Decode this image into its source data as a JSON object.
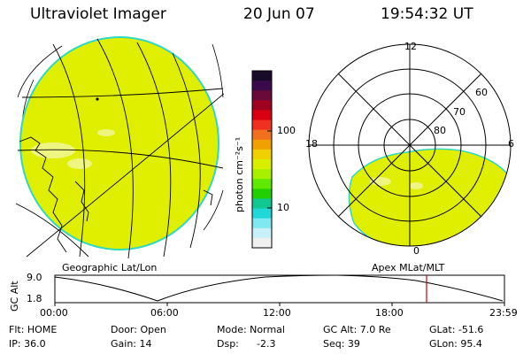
{
  "header": {
    "title": "Ultraviolet Imager",
    "date": "20 Jun 07",
    "time": "19:54:32 UT"
  },
  "colorbar": {
    "unit_label": "photon cm⁻²s⁻¹",
    "tick_labels": [
      "100",
      "10"
    ],
    "colors": [
      "#1a0a2a",
      "#3a0a4a",
      "#6a0a3a",
      "#a00020",
      "#d80010",
      "#f03020",
      "#f07020",
      "#f0a000",
      "#f0d000",
      "#d8f000",
      "#a8f000",
      "#60e800",
      "#20d000",
      "#10c890",
      "#20d8d8",
      "#80e8f0",
      "#c8f0f8",
      "#f0f0f0"
    ]
  },
  "globe_left": {
    "fill_color": "#e0ef00",
    "edge_color": "#30d8c0"
  },
  "polar_right": {
    "mlt_labels": {
      "top": "12",
      "left": "18",
      "right": "6",
      "bottom": "0"
    },
    "lat_labels": [
      "60",
      "70",
      "80"
    ],
    "fill_color": "#e0ef00"
  },
  "timeline": {
    "ylabel": "GC Alt",
    "yticks": [
      "9.0",
      "1.8"
    ],
    "xticks": [
      "00:00",
      "06:00",
      "12:00",
      "18:00",
      "23:59"
    ],
    "left_caption": "Geographic Lat/Lon",
    "right_caption": "Apex MLat/MLT",
    "marker_color": "#d00000"
  },
  "info": {
    "flt": "Flt: HOME",
    "ip": "IP: 36.0",
    "door": "Door: Open",
    "gain": "Gain: 14",
    "mode": "Mode: Normal",
    "dsp": "Dsp:",
    "dsp_value": "-2.3",
    "gc_alt": "GC Alt: 7.0 Re",
    "seq": "Seq: 39",
    "glat": "GLat: -51.6",
    "glon": "GLon: 95.4"
  }
}
